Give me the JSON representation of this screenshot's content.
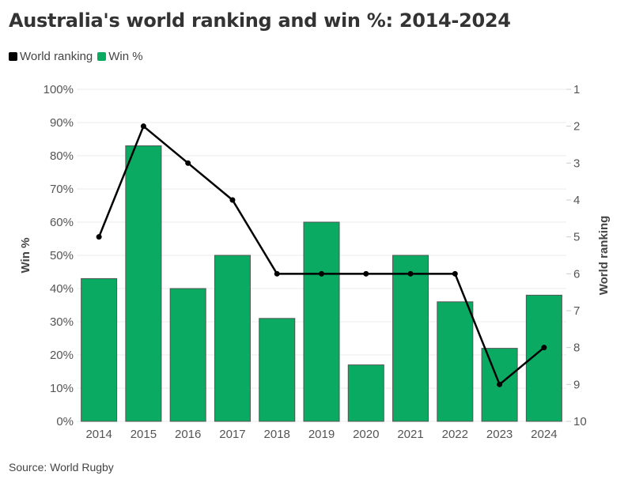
{
  "chart_data": {
    "type": "bar+line",
    "title": "Australia's world ranking and win %: 2014-2024",
    "source": "Source: World Rugby",
    "categories": [
      "2014",
      "2015",
      "2016",
      "2017",
      "2018",
      "2019",
      "2020",
      "2021",
      "2022",
      "2023",
      "2024"
    ],
    "series": [
      {
        "name": "World ranking",
        "type": "line",
        "axis": "right",
        "color": "#000000",
        "values": [
          5,
          2,
          3,
          4,
          6,
          6,
          6,
          6,
          6,
          9,
          8
        ]
      },
      {
        "name": "Win %",
        "type": "bar",
        "axis": "left",
        "color": "#0aaa63",
        "values": [
          43,
          83,
          40,
          50,
          31,
          60,
          17,
          50,
          36,
          22,
          38
        ]
      }
    ],
    "ylabel": "Win %",
    "y2label": "World ranking",
    "ylim": [
      0,
      100
    ],
    "y2lim": [
      1,
      10
    ],
    "y2_inverted": true,
    "yticks": [
      "0%",
      "10%",
      "20%",
      "30%",
      "40%",
      "50%",
      "60%",
      "70%",
      "80%",
      "90%",
      "100%"
    ],
    "y2ticks": [
      "1",
      "2",
      "3",
      "4",
      "5",
      "6",
      "7",
      "8",
      "9",
      "10"
    ],
    "grid": true,
    "legend_position": "top-left"
  }
}
